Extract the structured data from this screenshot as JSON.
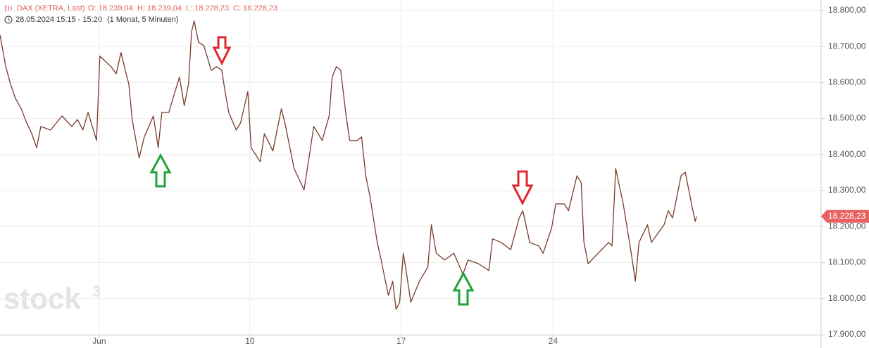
{
  "chart_data": {
    "type": "line",
    "title": "DAX (XETRA, Last)",
    "annotations": [
      "O: 18.239,04",
      "H: 18.239,04",
      "L: 18.228,23",
      "C: 18.228,23"
    ],
    "subtitle": "28.05.2024 15:15 - 15:20",
    "period": "(1 Monat, 5 Minuten)",
    "watermark": "stock",
    "watermark_sup": "3",
    "last_label": "18.228,23",
    "xlim": [
      0,
      27.14
    ],
    "xticks": [
      {
        "value": 3.28,
        "label": "Jun"
      },
      {
        "value": 8.26,
        "label": "10"
      },
      {
        "value": 13.26,
        "label": "17"
      },
      {
        "value": 18.28,
        "label": "24"
      }
    ],
    "ylim": [
      17898,
      18829
    ],
    "yticks": [
      {
        "value": 17900,
        "label": "17.900,00"
      },
      {
        "value": 18000,
        "label": "18.000,00"
      },
      {
        "value": 18100,
        "label": "18.100,00"
      },
      {
        "value": 18200,
        "label": "18.200,00"
      },
      {
        "value": 18300,
        "label": "18.300,00"
      },
      {
        "value": 18400,
        "label": "18.400,00"
      },
      {
        "value": 18500,
        "label": "18.500,00"
      },
      {
        "value": 18600,
        "label": "18.600,00"
      },
      {
        "value": 18700,
        "label": "18.700,00"
      },
      {
        "value": 18800,
        "label": "18.800,00"
      }
    ],
    "grid": true,
    "series": [
      {
        "name": "DAX",
        "color": "#7a3b2a",
        "x": [
          0,
          0.19,
          0.35,
          0.51,
          0.7,
          0.88,
          1.05,
          1.21,
          1.35,
          1.67,
          2.05,
          2.37,
          2.56,
          2.74,
          2.91,
          3.19,
          3.3,
          3.67,
          3.84,
          4.0,
          4.14,
          4.26,
          4.37,
          4.6,
          4.77,
          5.07,
          5.23,
          5.35,
          5.58,
          5.93,
          6.09,
          6.23,
          6.33,
          6.42,
          6.56,
          6.74,
          6.98,
          7.16,
          7.33,
          7.44,
          7.56,
          7.81,
          7.95,
          8.19,
          8.3,
          8.6,
          8.74,
          9.02,
          9.3,
          9.44,
          9.72,
          10.05,
          10.23,
          10.37,
          10.65,
          10.88,
          10.98,
          11.12,
          11.26,
          11.44,
          11.56,
          11.81,
          11.95,
          12.09,
          12.23,
          12.47,
          12.6,
          12.74,
          12.84,
          12.98,
          13.09,
          13.21,
          13.33,
          13.44,
          13.58,
          13.86,
          14.14,
          14.26,
          14.42,
          14.7,
          15.0,
          15.3,
          15.47,
          15.81,
          16.16,
          16.28,
          16.56,
          16.88,
          17.16,
          17.28,
          17.51,
          17.81,
          17.95,
          18.23,
          18.37,
          18.65,
          18.79,
          19.07,
          19.21,
          19.3,
          19.44,
          19.77,
          20.12,
          20.23,
          20.35,
          20.6,
          20.88,
          21.0,
          21.12,
          21.4,
          21.53,
          21.95,
          22.09,
          22.23,
          22.51,
          22.65,
          22.88,
          22.98,
          23.02
        ],
        "values": [
          18732,
          18644,
          18595,
          18556,
          18527,
          18488,
          18458,
          18419,
          18478,
          18468,
          18507,
          18478,
          18497,
          18468,
          18517,
          18439,
          18673,
          18644,
          18624,
          18683,
          18634,
          18595,
          18497,
          18390,
          18449,
          18507,
          18419,
          18517,
          18517,
          18615,
          18536,
          18595,
          18741,
          18771,
          18712,
          18702,
          18634,
          18644,
          18634,
          18575,
          18517,
          18468,
          18488,
          18575,
          18419,
          18380,
          18458,
          18410,
          18527,
          18478,
          18361,
          18302,
          18400,
          18478,
          18439,
          18507,
          18615,
          18644,
          18634,
          18507,
          18439,
          18439,
          18449,
          18341,
          18283,
          18156,
          18107,
          18048,
          18009,
          18048,
          17970,
          17990,
          18126,
          18068,
          17990,
          18048,
          18087,
          18205,
          18126,
          18107,
          18126,
          18068,
          18107,
          18097,
          18078,
          18166,
          18156,
          18136,
          18224,
          18244,
          18156,
          18146,
          18126,
          18195,
          18263,
          18263,
          18244,
          18341,
          18322,
          18156,
          18097,
          18126,
          18156,
          18146,
          18361,
          18263,
          18117,
          18048,
          18156,
          18205,
          18156,
          18205,
          18244,
          18224,
          18341,
          18351,
          18253,
          18214,
          18228.23
        ]
      }
    ]
  }
}
